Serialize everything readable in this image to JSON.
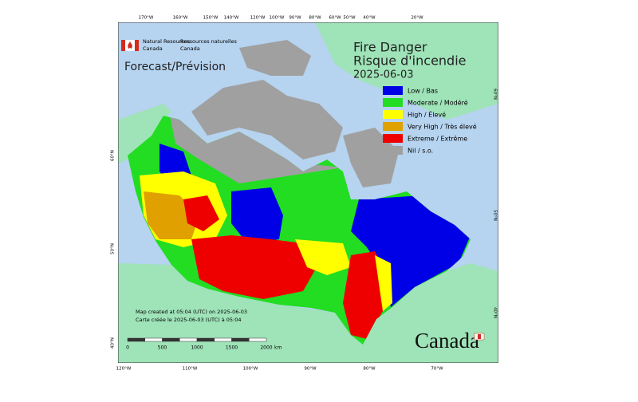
{
  "header": {
    "agency_en": "Natural Resources",
    "agency_en_2": "Canada",
    "agency_fr": "Ressources naturelles",
    "agency_fr_2": "Canada",
    "product": "Forecast/Prévision",
    "title_en": "Fire Danger",
    "title_fr": "Risque d'incendie",
    "date": "2025-06-03"
  },
  "legend": [
    {
      "label": "Low / Bas",
      "color": "#0000e6"
    },
    {
      "label": "Moderate / Modéré",
      "color": "#22dd22"
    },
    {
      "label": "High / Élevé",
      "color": "#ffff00"
    },
    {
      "label": "Very High / Très élevé",
      "color": "#e0a000"
    },
    {
      "label": "Extreme / Extrême",
      "color": "#ee0000"
    },
    {
      "label": "Nil / s.o.",
      "color": "#a0a0a0"
    }
  ],
  "notes": {
    "created_en": "Map created at 05:04 (UTC) on 2025-06-03",
    "created_fr": "Carte créée le 2025-06-03 (UTC) à 05:04"
  },
  "scale_bar": {
    "labels": [
      "0",
      "500",
      "1000",
      "1500",
      "2000"
    ],
    "unit": "km"
  },
  "wordmark": "Canada",
  "graticule": {
    "top": [
      "170°W",
      "160°W",
      "150°W",
      "140°W",
      "120°W",
      "100°W",
      "90°W",
      "80°W",
      "60°W",
      "50°W",
      "40°W",
      "20°W"
    ],
    "bottom": [
      "120°W",
      "110°W",
      "100°W",
      "90°W",
      "80°W",
      "70°W"
    ],
    "left": [
      "60°N",
      "50°N",
      "40°N"
    ],
    "right": [
      "60°N",
      "50°N",
      "40°N"
    ]
  }
}
